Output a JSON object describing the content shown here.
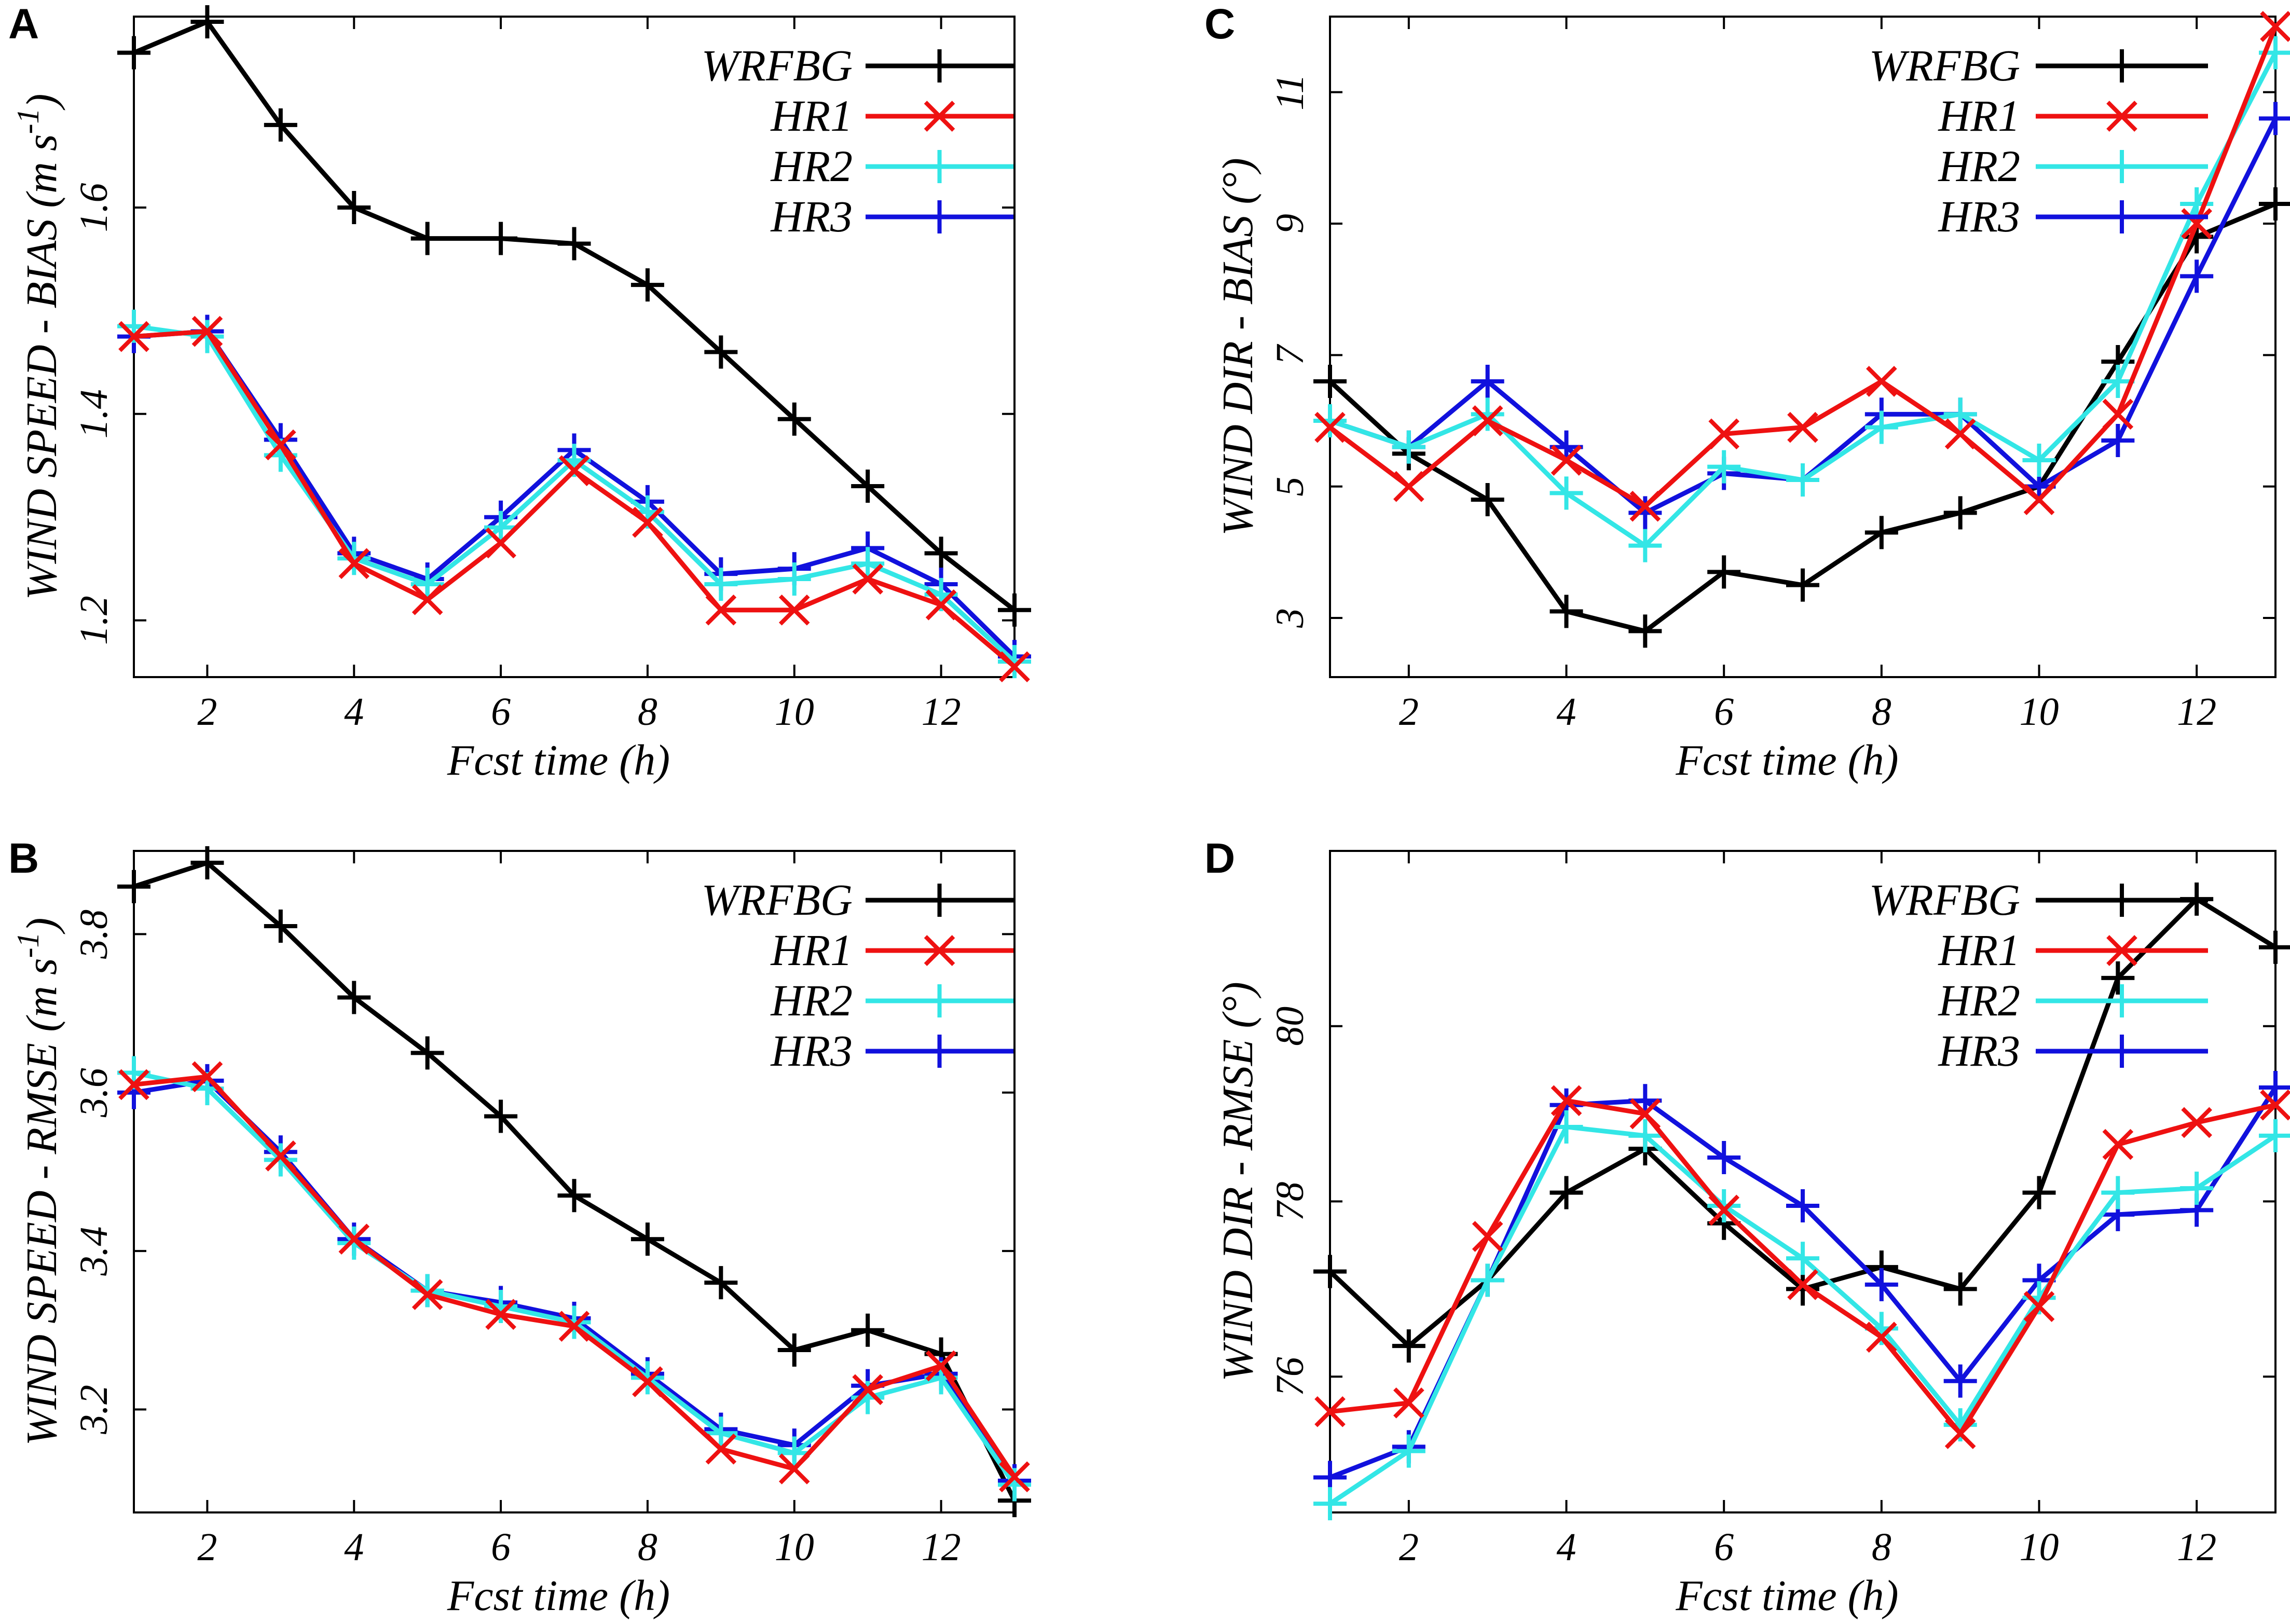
{
  "chart_data": [
    {
      "panel": "A",
      "type": "line",
      "ylabel_main": "WIND SPEED - BIAS ",
      "ylabel_unit": "(m s",
      "ylabel_sup": "-1",
      "ylabel_close": ")",
      "xlabel": "Fcst time (h)",
      "xlim": [
        1,
        13
      ],
      "ylim": [
        1.145,
        1.785
      ],
      "xticks": [
        2,
        4,
        6,
        8,
        10,
        12
      ],
      "yticks": [
        1.2,
        1.4,
        1.6
      ],
      "ytick_labels": [
        "1.2",
        "1.4",
        "1.6"
      ],
      "x": [
        1,
        2,
        3,
        4,
        5,
        6,
        7,
        8,
        9,
        10,
        11,
        12,
        13
      ],
      "series": [
        {
          "name": "WRFBG",
          "color": "#000000",
          "marker": "plus",
          "values": [
            1.75,
            1.78,
            1.68,
            1.6,
            1.57,
            1.57,
            1.565,
            1.525,
            1.46,
            1.395,
            1.33,
            1.265,
            1.21
          ]
        },
        {
          "name": "HR1",
          "color": "#ee1111",
          "marker": "cross",
          "values": [
            1.475,
            1.48,
            1.37,
            1.255,
            1.22,
            1.275,
            1.345,
            1.295,
            1.21,
            1.21,
            1.24,
            1.215,
            1.155
          ]
        },
        {
          "name": "HR2",
          "color": "#33e6e6",
          "marker": "plus",
          "values": [
            1.485,
            1.475,
            1.36,
            1.26,
            1.235,
            1.29,
            1.355,
            1.305,
            1.235,
            1.24,
            1.255,
            1.225,
            1.16
          ]
        },
        {
          "name": "HR3",
          "color": "#1111dd",
          "marker": "plus",
          "values": [
            1.475,
            1.48,
            1.375,
            1.265,
            1.24,
            1.3,
            1.365,
            1.315,
            1.245,
            1.25,
            1.27,
            1.235,
            1.165
          ]
        }
      ]
    },
    {
      "panel": "B",
      "type": "line",
      "ylabel_main": "WIND SPEED - RMSE ",
      "ylabel_unit": "(m s",
      "ylabel_sup": "-1",
      "ylabel_close": ")",
      "xlabel": "Fcst time (h)",
      "xlim": [
        1,
        13
      ],
      "ylim": [
        3.07,
        3.905
      ],
      "xticks": [
        2,
        4,
        6,
        8,
        10,
        12
      ],
      "yticks": [
        3.2,
        3.4,
        3.6,
        3.8
      ],
      "ytick_labels": [
        "3.2",
        "3.4",
        "3.6",
        "3.8"
      ],
      "x": [
        1,
        2,
        3,
        4,
        5,
        6,
        7,
        8,
        9,
        10,
        11,
        12,
        13
      ],
      "series": [
        {
          "name": "WRFBG",
          "color": "#000000",
          "marker": "plus",
          "values": [
            3.86,
            3.89,
            3.81,
            3.72,
            3.65,
            3.57,
            3.47,
            3.415,
            3.36,
            3.275,
            3.3,
            3.27,
            3.085
          ]
        },
        {
          "name": "HR1",
          "color": "#ee1111",
          "marker": "cross",
          "values": [
            3.61,
            3.62,
            3.52,
            3.415,
            3.345,
            3.32,
            3.305,
            3.235,
            3.15,
            3.125,
            3.225,
            3.255,
            3.115
          ]
        },
        {
          "name": "HR2",
          "color": "#33e6e6",
          "marker": "plus",
          "values": [
            3.625,
            3.605,
            3.515,
            3.41,
            3.35,
            3.33,
            3.31,
            3.24,
            3.17,
            3.145,
            3.215,
            3.24,
            3.105
          ]
        },
        {
          "name": "HR3",
          "color": "#1111dd",
          "marker": "plus",
          "values": [
            3.6,
            3.615,
            3.525,
            3.415,
            3.35,
            3.335,
            3.315,
            3.245,
            3.175,
            3.155,
            3.23,
            3.245,
            3.11
          ]
        }
      ]
    },
    {
      "panel": "C",
      "type": "line",
      "ylabel_main": "WIND DIR - BIAS ",
      "ylabel_unit": "(°)",
      "ylabel_sup": "",
      "ylabel_close": "",
      "xlabel": "Fcst time (h)",
      "xlim": [
        1,
        13
      ],
      "ylim": [
        2.1,
        12.15
      ],
      "xticks": [
        2,
        4,
        6,
        8,
        10,
        12
      ],
      "yticks": [
        3,
        5,
        7,
        9,
        11
      ],
      "ytick_labels": [
        "3",
        "5",
        "7",
        "9",
        "11"
      ],
      "x": [
        1,
        2,
        3,
        4,
        5,
        6,
        7,
        8,
        9,
        10,
        11,
        12,
        13
      ],
      "series": [
        {
          "name": "WRFBG",
          "color": "#000000",
          "marker": "plus",
          "values": [
            6.6,
            5.5,
            4.8,
            3.1,
            2.8,
            3.7,
            3.5,
            4.3,
            4.6,
            5.0,
            6.9,
            8.8,
            9.3
          ]
        },
        {
          "name": "HR1",
          "color": "#ee1111",
          "marker": "cross",
          "values": [
            5.9,
            5.0,
            6.0,
            5.4,
            4.7,
            5.8,
            5.9,
            6.6,
            5.8,
            4.8,
            6.1,
            9.0,
            12.0
          ]
        },
        {
          "name": "HR2",
          "color": "#33e6e6",
          "marker": "plus",
          "values": [
            6.0,
            5.6,
            6.1,
            4.9,
            4.1,
            5.3,
            5.1,
            5.9,
            6.1,
            5.4,
            6.6,
            9.3,
            11.6
          ]
        },
        {
          "name": "HR3",
          "color": "#1111dd",
          "marker": "plus",
          "values": [
            6.0,
            5.6,
            6.6,
            5.6,
            4.6,
            5.2,
            5.1,
            6.1,
            6.1,
            5.0,
            5.7,
            8.2,
            10.6
          ]
        }
      ]
    },
    {
      "panel": "D",
      "type": "line",
      "ylabel_main": "WIND DIR - RMSE ",
      "ylabel_unit": "(°)",
      "ylabel_sup": "",
      "ylabel_close": "",
      "xlabel": "Fcst time (h)",
      "xlim": [
        1,
        13
      ],
      "ylim": [
        74.45,
        82.0
      ],
      "xticks": [
        2,
        4,
        6,
        8,
        10,
        12
      ],
      "yticks": [
        76,
        78,
        80
      ],
      "ytick_labels": [
        "76",
        "78",
        "80"
      ],
      "x": [
        1,
        2,
        3,
        4,
        5,
        6,
        7,
        8,
        9,
        10,
        11,
        12,
        13
      ],
      "series": [
        {
          "name": "WRFBG",
          "color": "#000000",
          "marker": "plus",
          "values": [
            77.2,
            76.35,
            77.1,
            78.1,
            78.6,
            77.75,
            77.0,
            77.25,
            77.0,
            78.1,
            80.55,
            81.45,
            80.9
          ]
        },
        {
          "name": "HR1",
          "color": "#ee1111",
          "marker": "cross",
          "values": [
            75.6,
            75.7,
            77.6,
            79.15,
            79.0,
            77.9,
            77.05,
            76.45,
            75.35,
            76.8,
            78.65,
            78.9,
            79.1
          ]
        },
        {
          "name": "HR2",
          "color": "#33e6e6",
          "marker": "plus",
          "values": [
            74.55,
            75.15,
            77.1,
            78.85,
            78.75,
            77.95,
            77.35,
            76.55,
            75.45,
            76.9,
            78.1,
            78.15,
            78.75
          ]
        },
        {
          "name": "HR3",
          "color": "#1111dd",
          "marker": "plus",
          "values": [
            74.85,
            75.2,
            77.1,
            79.1,
            79.15,
            78.5,
            77.95,
            77.05,
            75.95,
            77.1,
            77.85,
            77.9,
            79.3
          ]
        }
      ]
    }
  ]
}
